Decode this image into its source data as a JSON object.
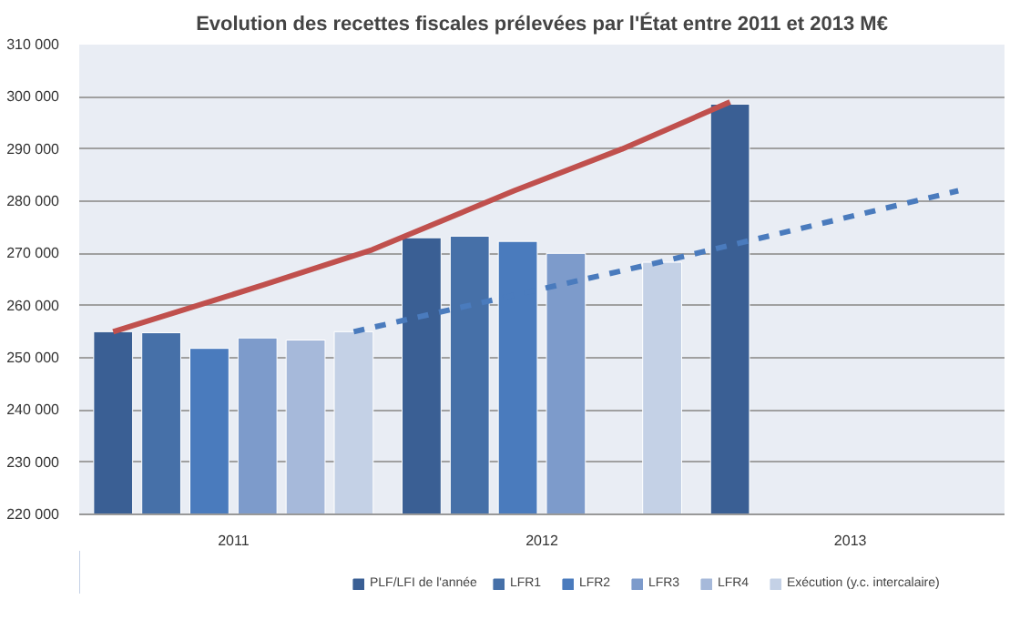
{
  "chart_data": {
    "type": "bar",
    "title": "Evolution des recettes fiscales prélevées par l'État entre 2011 et 2013 M€",
    "x": [
      2011,
      2012,
      2013
    ],
    "xlim": [
      2010.5,
      2013.5
    ],
    "xticks": [
      2011,
      2012,
      2013
    ],
    "ylim": [
      220000,
      310000
    ],
    "yticks": [
      {
        "value": 220000,
        "label": "220 000"
      },
      {
        "value": 230000,
        "label": "230 000"
      },
      {
        "value": 240000,
        "label": "240 000"
      },
      {
        "value": 250000,
        "label": "250 000"
      },
      {
        "value": 260000,
        "label": "260 000"
      },
      {
        "value": 270000,
        "label": "270 000"
      },
      {
        "value": 280000,
        "label": "280 000"
      },
      {
        "value": 290000,
        "label": "290 000"
      },
      {
        "value": 300000,
        "label": "300 000"
      },
      {
        "value": 310000,
        "label": "310 000"
      }
    ],
    "grid": "y",
    "legend": "bottom",
    "series": [
      {
        "name": "PLF/LFI de l'année",
        "color": "#3a5f94",
        "values": [
          255000,
          273000,
          298600
        ]
      },
      {
        "name": "LFR1",
        "color": "#4670a8",
        "values": [
          254800,
          273300,
          null
        ]
      },
      {
        "name": "LFR2",
        "color": "#4a7bbd",
        "values": [
          251800,
          272300,
          null
        ]
      },
      {
        "name": "LFR3",
        "color": "#7d9bcb",
        "values": [
          253800,
          270000,
          null
        ]
      },
      {
        "name": "LFR4",
        "color": "#a6b9da",
        "values": [
          253400,
          null,
          null
        ]
      },
      {
        "name": "Exécution (y.c. intercalaire)",
        "color": "#c4d1e6",
        "values": [
          255000,
          268300,
          null
        ]
      },
      {
        "type": "line",
        "color": "#c0504d",
        "line_style": "solid",
        "x": [
          2010.61,
          2011.1,
          2011.45,
          2011.91,
          2012.26,
          2012.61
        ],
        "values": [
          255000,
          264000,
          270700,
          282000,
          290000,
          299000
        ]
      },
      {
        "type": "line",
        "color": "#4a7bbd",
        "line_style": "dashed",
        "x": [
          2011.39,
          2012.38,
          2013.35
        ],
        "values": [
          255000,
          268300,
          282000
        ]
      }
    ]
  }
}
